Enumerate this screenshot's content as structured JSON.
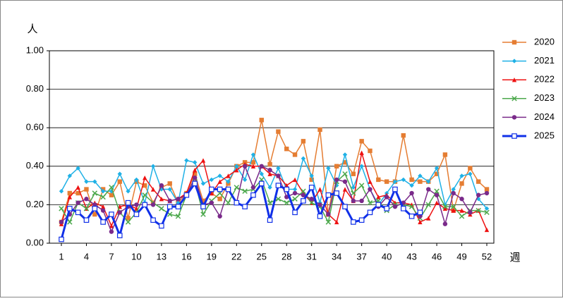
{
  "chart_data": {
    "type": "line",
    "y_label": "人",
    "x_label": "週",
    "x": [
      1,
      2,
      3,
      4,
      5,
      6,
      7,
      8,
      9,
      10,
      11,
      12,
      13,
      14,
      15,
      16,
      17,
      18,
      19,
      20,
      21,
      22,
      23,
      24,
      25,
      26,
      27,
      28,
      29,
      30,
      31,
      32,
      33,
      34,
      35,
      36,
      37,
      38,
      39,
      40,
      41,
      42,
      43,
      44,
      45,
      46,
      47,
      48,
      49,
      50,
      51,
      52
    ],
    "xlim": [
      1,
      52
    ],
    "xticks": [
      1,
      4,
      7,
      10,
      13,
      16,
      19,
      22,
      25,
      28,
      31,
      34,
      37,
      40,
      43,
      46,
      49,
      52
    ],
    "ylim": [
      0,
      1
    ],
    "yticks": [
      {
        "value": 0,
        "label": "0.00"
      },
      {
        "value": 0.2,
        "label": "0.20"
      },
      {
        "value": 0.4,
        "label": "0.40"
      },
      {
        "value": 0.6,
        "label": "0.60"
      },
      {
        "value": 0.8,
        "label": "0.80"
      },
      {
        "value": 1,
        "label": "1.00"
      }
    ],
    "grid": true,
    "legend": "right",
    "series": [
      {
        "name": "2020",
        "color": "#e57d32",
        "marker": "square",
        "line_width": 1.5,
        "values": [
          0.11,
          0.26,
          0.26,
          0.28,
          0.15,
          0.28,
          0.25,
          0.32,
          0.13,
          0.32,
          0.3,
          0.21,
          0.29,
          0.31,
          0.21,
          0.26,
          0.36,
          0.22,
          0.26,
          0.23,
          0.31,
          0.4,
          0.42,
          0.42,
          0.64,
          0.41,
          0.58,
          0.49,
          0.46,
          0.53,
          0.33,
          0.59,
          0.15,
          0.4,
          0.42,
          0.36,
          0.53,
          0.48,
          0.33,
          0.32,
          0.32,
          0.56,
          0.33,
          0.32,
          0.32,
          0.36,
          0.46,
          0.17,
          0.31,
          0.39,
          0.32,
          0.28
        ]
      },
      {
        "name": "2021",
        "color": "#1fb1e6",
        "marker": "diamond",
        "line_width": 1.5,
        "values": [
          0.27,
          0.35,
          0.39,
          0.32,
          0.32,
          0.27,
          0.27,
          0.36,
          0.27,
          0.33,
          0.21,
          0.4,
          0.28,
          0.28,
          0.21,
          0.43,
          0.42,
          0.31,
          0.33,
          0.35,
          0.32,
          0.4,
          0.33,
          0.46,
          0.36,
          0.29,
          0.39,
          0.28,
          0.28,
          0.44,
          0.35,
          0.21,
          0.39,
          0.3,
          0.46,
          0.29,
          0.4,
          0.28,
          0.2,
          0.26,
          0.32,
          0.33,
          0.3,
          0.35,
          0.32,
          0.39,
          0.2,
          0.28,
          0.35,
          0.36,
          0.23,
          0.18
        ]
      },
      {
        "name": "2022",
        "color": "#ee1111",
        "marker": "triangle",
        "line_width": 1.5,
        "values": [
          0.1,
          0.24,
          0.29,
          0.18,
          0.21,
          0.19,
          0.09,
          0.19,
          0.2,
          0.18,
          0.34,
          0.28,
          0.23,
          0.22,
          0.23,
          0.26,
          0.38,
          0.43,
          0.26,
          0.32,
          0.35,
          0.38,
          0.41,
          0.4,
          0.4,
          0.36,
          0.35,
          0.3,
          0.33,
          0.26,
          0.21,
          0.28,
          0.15,
          0.11,
          0.28,
          0.22,
          0.47,
          0.32,
          0.24,
          0.25,
          0.21,
          0.21,
          0.2,
          0.11,
          0.13,
          0.21,
          0.18,
          0.17,
          0.17,
          0.15,
          0.17,
          0.07
        ]
      },
      {
        "name": "2023",
        "color": "#4ca84c",
        "marker": "x",
        "line_width": 1.5,
        "values": [
          0.18,
          0.11,
          0.21,
          0.18,
          0.26,
          0.24,
          0.29,
          0.16,
          0.11,
          0.16,
          0.25,
          0.21,
          0.18,
          0.15,
          0.14,
          0.25,
          0.32,
          0.15,
          0.22,
          0.26,
          0.21,
          0.29,
          0.27,
          0.28,
          0.33,
          0.21,
          0.23,
          0.21,
          0.23,
          0.27,
          0.21,
          0.19,
          0.11,
          0.32,
          0.36,
          0.26,
          0.3,
          0.21,
          0.22,
          0.17,
          0.2,
          0.2,
          0.19,
          0.13,
          0.2,
          0.27,
          0.19,
          0.19,
          0.14,
          0.17,
          0.17,
          0.16
        ]
      },
      {
        "name": "2024",
        "color": "#7a2a8a",
        "marker": "circle",
        "line_width": 1.5,
        "values": [
          0.11,
          0.15,
          0.21,
          0.23,
          0.2,
          0.17,
          0.06,
          0.16,
          0.19,
          0.2,
          0.2,
          0.2,
          0.3,
          0.22,
          0.23,
          0.25,
          0.34,
          0.2,
          0.21,
          0.14,
          0.28,
          0.21,
          0.4,
          0.29,
          0.4,
          0.38,
          0.35,
          0.24,
          0.26,
          0.25,
          0.23,
          0.2,
          0.15,
          0.33,
          0.32,
          0.22,
          0.22,
          0.28,
          0.19,
          0.24,
          0.19,
          0.21,
          0.26,
          0.14,
          0.28,
          0.25,
          0.1,
          0.26,
          0.23,
          0.16,
          0.25,
          0.26
        ]
      },
      {
        "name": "2025",
        "color": "#1030e8",
        "marker": "open-square",
        "line_width": 3,
        "values": [
          0.02,
          0.18,
          0.16,
          0.12,
          0.18,
          0.11,
          0.15,
          0.04,
          0.21,
          0.15,
          0.2,
          0.12,
          0.09,
          0.19,
          0.19,
          0.25,
          0.31,
          0.19,
          0.28,
          0.28,
          0.28,
          0.21,
          0.19,
          0.25,
          0.31,
          0.12,
          0.3,
          0.28,
          0.16,
          0.22,
          0.29,
          0.14,
          0.25,
          0.26,
          0.19,
          0.11,
          0.12,
          0.16,
          0.2,
          0.18,
          0.28,
          0.18,
          0.14,
          0.16,
          null,
          null,
          null,
          null,
          null,
          null,
          null,
          null
        ]
      }
    ]
  }
}
